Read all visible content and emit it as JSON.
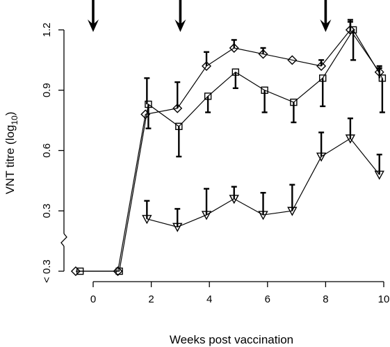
{
  "chart_data": {
    "type": "line",
    "title": "",
    "xlabel": "Weeks post vaccination",
    "ylabel": "VNT titre (log",
    "ylabel_sub": "10",
    "ylabel_close": ")",
    "xlim": [
      -0.7,
      10.2
    ],
    "ylim": [
      0.0,
      1.32
    ],
    "x_ticks": [
      {
        "value": 0,
        "label": "0"
      },
      {
        "value": 2,
        "label": "2"
      },
      {
        "value": 4,
        "label": "4"
      },
      {
        "value": 6,
        "label": "6"
      },
      {
        "value": 8,
        "label": "8"
      },
      {
        "value": 10,
        "label": "10"
      }
    ],
    "y_ticks": [
      {
        "value": 0.0,
        "label": "< 0.3"
      },
      {
        "value": 0.3,
        "label": "0.3"
      },
      {
        "value": 0.6,
        "label": "0.6"
      },
      {
        "value": 0.9,
        "label": "0.9"
      },
      {
        "value": 1.2,
        "label": "1.2"
      }
    ],
    "axis_break": {
      "axis": "y",
      "between": [
        0.0,
        0.3
      ]
    },
    "vaccination_arrows_x": [
      0,
      3,
      8
    ],
    "series": [
      {
        "marker": "diamond",
        "x": [
          -0.6,
          0.85,
          1.8,
          2.9,
          3.9,
          4.85,
          5.85,
          6.85,
          7.85,
          8.85,
          9.85
        ],
        "y": [
          0.0,
          0.0,
          0.78,
          0.81,
          1.02,
          1.11,
          1.08,
          1.05,
          1.02,
          1.2,
          0.99
        ],
        "err_up": [
          0,
          0,
          0,
          0,
          0.07,
          0.04,
          0.03,
          0,
          0.03,
          0.04,
          0.03
        ]
      },
      {
        "marker": "square",
        "x": [
          -0.45,
          0.9,
          1.9,
          2.95,
          3.95,
          4.9,
          5.9,
          6.9,
          7.9,
          8.95,
          9.95
        ],
        "y": [
          0.0,
          0.0,
          0.83,
          0.72,
          0.87,
          0.99,
          0.9,
          0.84,
          0.96,
          1.2,
          0.96
        ],
        "err_up": [
          0,
          0,
          0,
          0,
          0,
          0,
          0,
          0,
          0,
          0,
          0
        ],
        "err_down": [
          0,
          0,
          0.12,
          0.15,
          0.08,
          0.08,
          0.11,
          0.1,
          0.14,
          0.15,
          0.17
        ]
      },
      {
        "marker": "triangle-down",
        "x": [
          1.85,
          2.9,
          3.9,
          4.85,
          5.85,
          6.85,
          7.85,
          8.85,
          9.85
        ],
        "y": [
          0.26,
          0.22,
          0.28,
          0.36,
          0.28,
          0.3,
          0.57,
          0.66,
          0.48
        ],
        "err_up": [
          0.09,
          0.09,
          0.13,
          0.06,
          0.11,
          0.13,
          0.12,
          0.1,
          0.1
        ]
      }
    ],
    "extra_error_bars_up": [
      {
        "x": 1.85,
        "y": 0.83,
        "up": 0.13
      },
      {
        "x": 2.9,
        "y": 0.81,
        "up": 0.13
      },
      {
        "x": 8.85,
        "y": 1.2,
        "up": 0.05
      },
      {
        "x": 9.85,
        "y": 0.96,
        "up": 0.05
      }
    ]
  }
}
